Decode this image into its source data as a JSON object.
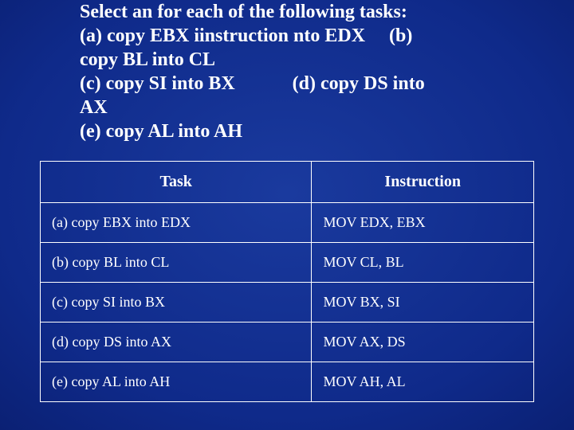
{
  "background": {
    "gradient_center_color": "#1a3a9e",
    "gradient_edge_color": "#04104a"
  },
  "title": {
    "line1": "Select an for each of the following tasks:",
    "line2_a": "(a)  copy EBX iinstruction nto EDX",
    "line2_b": "(b)",
    "line3": "copy BL into CL",
    "line4_c": "(c)  copy SI into BX",
    "line4_d": "(d)  copy DS into",
    "line5": "AX",
    "line6": "(e)  copy AL into AH",
    "font_size": 24,
    "font_weight": "bold",
    "color": "#ffffff"
  },
  "table": {
    "border_color": "#ffffff",
    "text_color": "#ffffff",
    "header_font_size": 20,
    "cell_font_size": 18,
    "columns": [
      {
        "label": "Task",
        "width_pct": 55,
        "align": "center"
      },
      {
        "label": "Instruction",
        "width_pct": 45,
        "align": "center"
      }
    ],
    "rows": [
      {
        "task": "(a)  copy EBX into EDX",
        "instruction": "MOV  EDX, EBX"
      },
      {
        "task": "(b)  copy BL into CL",
        "instruction": "MOV  CL, BL"
      },
      {
        "task": "(c)  copy SI into BX",
        "instruction": "MOV  BX, SI"
      },
      {
        "task": "(d)  copy DS into AX",
        "instruction": "MOV  AX, DS"
      },
      {
        "task": "(e)  copy AL into AH",
        "instruction": "MOV  AH, AL"
      }
    ]
  }
}
